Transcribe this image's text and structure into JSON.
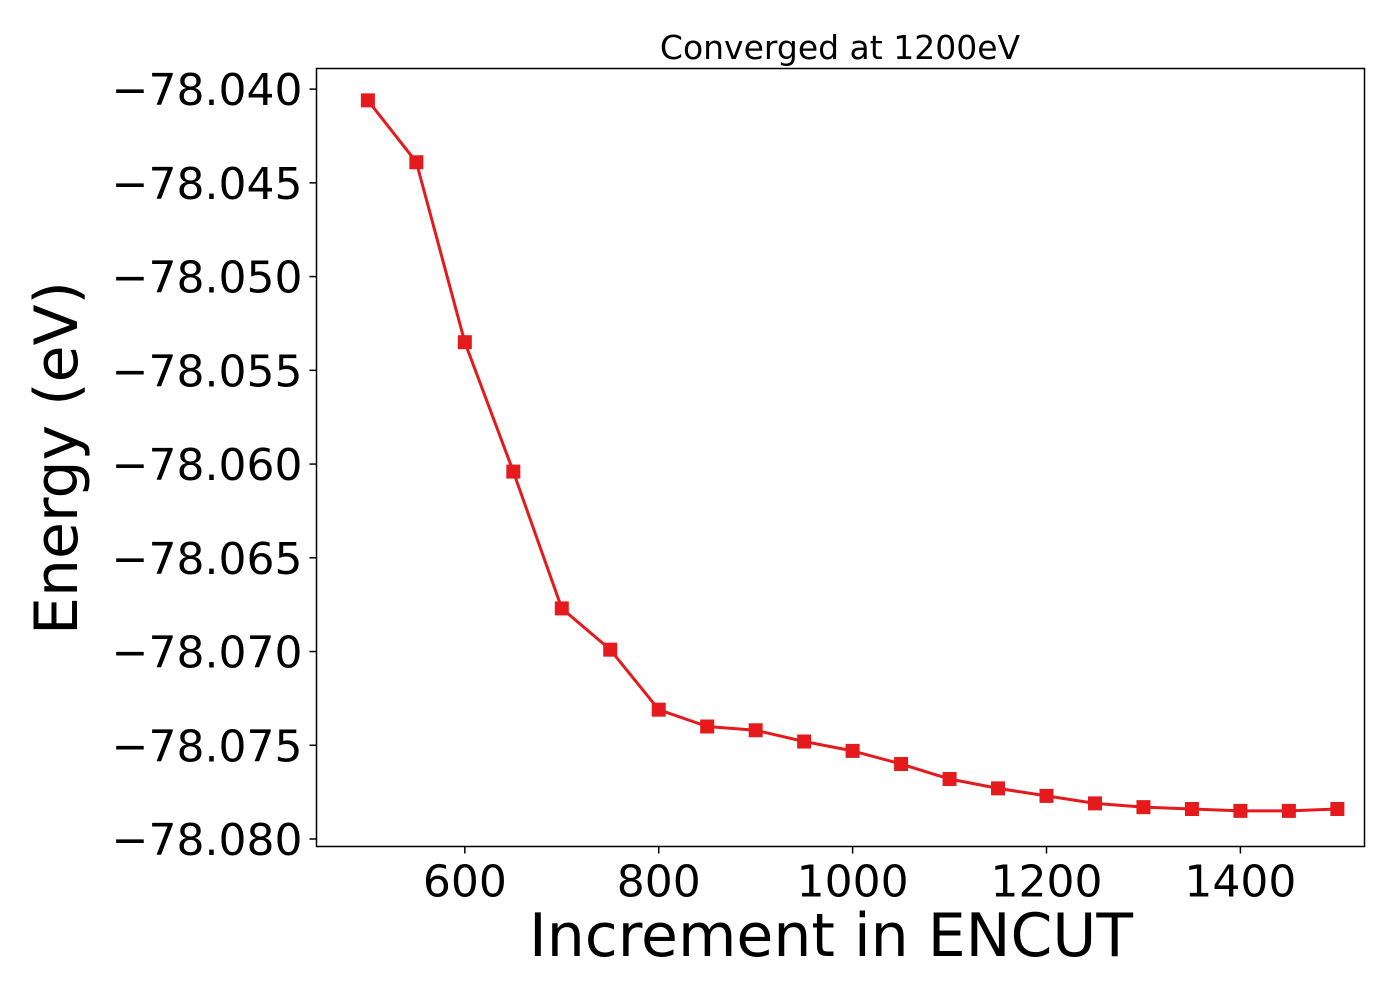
{
  "chart_data": {
    "type": "line",
    "title": "Converged at 1200eV",
    "xlabel": "Increment in ENCUT",
    "ylabel": "Energy (eV)",
    "xlim": [
      447,
      1528
    ],
    "ylim": [
      -78.0804,
      -78.0389
    ],
    "xticks": [
      600,
      800,
      1000,
      1200,
      1400
    ],
    "xtick_labels": [
      "600",
      "800",
      "1000",
      "1200",
      "1400"
    ],
    "yticks": [
      -78.04,
      -78.045,
      -78.05,
      -78.055,
      -78.06,
      -78.065,
      -78.07,
      -78.075,
      -78.08
    ],
    "ytick_labels": [
      "−78.040",
      "−78.045",
      "−78.050",
      "−78.055",
      "−78.060",
      "−78.065",
      "−78.070",
      "−78.075",
      "−78.080"
    ],
    "grid": false,
    "series": [
      {
        "color": "#e41a1c",
        "marker": "square",
        "x": [
          500,
          550,
          600,
          650,
          700,
          750,
          800,
          850,
          900,
          950,
          1000,
          1050,
          1100,
          1150,
          1200,
          1250,
          1300,
          1350,
          1400,
          1450,
          1500
        ],
        "y": [
          -78.0406,
          -78.0439,
          -78.0535,
          -78.0604,
          -78.0677,
          -78.0699,
          -78.0731,
          -78.074,
          -78.0742,
          -78.0748,
          -78.0753,
          -78.076,
          -78.0768,
          -78.0773,
          -78.0777,
          -78.0781,
          -78.0783,
          -78.0784,
          -78.0785,
          -78.0785,
          -78.0784
        ]
      }
    ]
  }
}
